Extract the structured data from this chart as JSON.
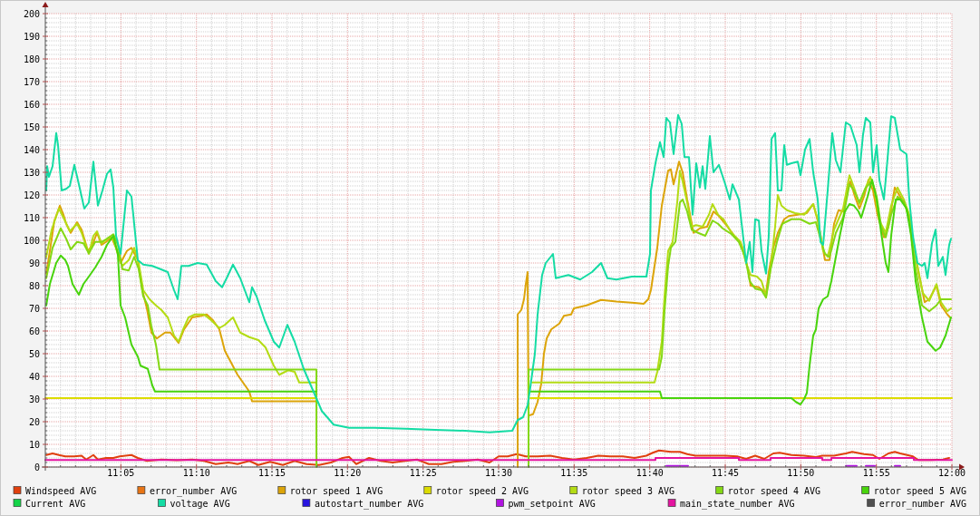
{
  "chart_data": {
    "type": "line",
    "xlim": [
      11,
      12
    ],
    "ylim": [
      0,
      200
    ],
    "grid": true,
    "legend": "bottom",
    "xticks": [
      {
        "value": 11.0167,
        "label": null
      },
      {
        "value": 11.0333,
        "label": null
      },
      {
        "value": 11.05,
        "label": null
      },
      {
        "value": 11.0667,
        "label": null
      },
      {
        "value": 11.0833,
        "label": "11:05"
      },
      {
        "value": 11.1,
        "label": null
      },
      {
        "value": 11.1167,
        "label": null
      },
      {
        "value": 11.1333,
        "label": null
      },
      {
        "value": 11.15,
        "label": null
      },
      {
        "value": 11.1667,
        "label": "11:10"
      },
      {
        "value": 11.1833,
        "label": null
      },
      {
        "value": 11.2,
        "label": null
      },
      {
        "value": 11.2167,
        "label": null
      },
      {
        "value": 11.2333,
        "label": null
      },
      {
        "value": 11.25,
        "label": "11:15"
      },
      {
        "value": 11.2667,
        "label": null
      },
      {
        "value": 11.2833,
        "label": null
      },
      {
        "value": 11.3,
        "label": null
      },
      {
        "value": 11.3167,
        "label": null
      },
      {
        "value": 11.3333,
        "label": "11:20"
      },
      {
        "value": 11.35,
        "label": null
      },
      {
        "value": 11.3667,
        "label": null
      },
      {
        "value": 11.3833,
        "label": null
      },
      {
        "value": 11.4,
        "label": null
      },
      {
        "value": 11.4167,
        "label": "11:25"
      },
      {
        "value": 11.4333,
        "label": null
      },
      {
        "value": 11.45,
        "label": null
      },
      {
        "value": 11.4667,
        "label": null
      },
      {
        "value": 11.4833,
        "label": null
      },
      {
        "value": 11.5,
        "label": "11:30"
      },
      {
        "value": 11.5167,
        "label": null
      },
      {
        "value": 11.5333,
        "label": null
      },
      {
        "value": 11.55,
        "label": null
      },
      {
        "value": 11.5667,
        "label": null
      },
      {
        "value": 11.5833,
        "label": "11:35"
      },
      {
        "value": 11.6,
        "label": null
      },
      {
        "value": 11.6167,
        "label": null
      },
      {
        "value": 11.6333,
        "label": null
      },
      {
        "value": 11.65,
        "label": null
      },
      {
        "value": 11.6667,
        "label": "11:40"
      },
      {
        "value": 11.6833,
        "label": null
      },
      {
        "value": 11.7,
        "label": null
      },
      {
        "value": 11.7167,
        "label": null
      },
      {
        "value": 11.7333,
        "label": null
      },
      {
        "value": 11.75,
        "label": "11:45"
      },
      {
        "value": 11.7667,
        "label": null
      },
      {
        "value": 11.7833,
        "label": null
      },
      {
        "value": 11.8,
        "label": null
      },
      {
        "value": 11.8167,
        "label": null
      },
      {
        "value": 11.8333,
        "label": "11:50"
      },
      {
        "value": 11.85,
        "label": null
      },
      {
        "value": 11.8667,
        "label": null
      },
      {
        "value": 11.8833,
        "label": null
      },
      {
        "value": 11.9,
        "label": null
      },
      {
        "value": 11.9167,
        "label": "11:55"
      },
      {
        "value": 11.9333,
        "label": null
      },
      {
        "value": 11.95,
        "label": null
      },
      {
        "value": 11.9667,
        "label": null
      },
      {
        "value": 11.9833,
        "label": null
      },
      {
        "value": 12,
        "label": "12:00"
      }
    ],
    "yticks": [
      0,
      {
        "value": 2,
        "label": null
      },
      {
        "value": 4,
        "label": null
      },
      {
        "value": 6,
        "label": null
      },
      {
        "value": 8,
        "label": null
      },
      10,
      {
        "value": 12,
        "label": null
      },
      {
        "value": 14,
        "label": null
      },
      {
        "value": 16,
        "label": null
      },
      {
        "value": 18,
        "label": null
      },
      20,
      {
        "value": 22,
        "label": null
      },
      {
        "value": 24,
        "label": null
      },
      {
        "value": 26,
        "label": null
      },
      {
        "value": 28,
        "label": null
      },
      30,
      {
        "value": 32,
        "label": null
      },
      {
        "value": 34,
        "label": null
      },
      {
        "value": 36,
        "label": null
      },
      {
        "value": 38,
        "label": null
      },
      40,
      {
        "value": 42,
        "label": null
      },
      {
        "value": 44,
        "label": null
      },
      {
        "value": 46,
        "label": null
      },
      {
        "value": 48,
        "label": null
      },
      50,
      {
        "value": 52,
        "label": null
      },
      {
        "value": 54,
        "label": null
      },
      {
        "value": 56,
        "label": null
      },
      {
        "value": 58,
        "label": null
      },
      60,
      {
        "value": 62,
        "label": null
      },
      {
        "value": 64,
        "label": null
      },
      {
        "value": 66,
        "label": null
      },
      {
        "value": 68,
        "label": null
      },
      70,
      {
        "value": 72,
        "label": null
      },
      {
        "value": 74,
        "label": null
      },
      {
        "value": 76,
        "label": null
      },
      {
        "value": 78,
        "label": null
      },
      80,
      {
        "value": 82,
        "label": null
      },
      {
        "value": 84,
        "label": null
      },
      {
        "value": 86,
        "label": null
      },
      {
        "value": 88,
        "label": null
      },
      90,
      {
        "value": 92,
        "label": null
      },
      {
        "value": 94,
        "label": null
      },
      {
        "value": 96,
        "label": null
      },
      {
        "value": 98,
        "label": null
      },
      100,
      {
        "value": 102,
        "label": null
      },
      {
        "value": 104,
        "label": null
      },
      {
        "value": 106,
        "label": null
      },
      {
        "value": 108,
        "label": null
      },
      110,
      {
        "value": 112,
        "label": null
      },
      {
        "value": 114,
        "label": null
      },
      {
        "value": 116,
        "label": null
      },
      {
        "value": 118,
        "label": null
      },
      120,
      {
        "value": 122,
        "label": null
      },
      {
        "value": 124,
        "label": null
      },
      {
        "value": 126,
        "label": null
      },
      {
        "value": 128,
        "label": null
      },
      130,
      {
        "value": 132,
        "label": null
      },
      {
        "value": 134,
        "label": null
      },
      {
        "value": 136,
        "label": null
      },
      {
        "value": 138,
        "label": null
      },
      140,
      {
        "value": 142,
        "label": null
      },
      {
        "value": 144,
        "label": null
      },
      {
        "value": 146,
        "label": null
      },
      {
        "value": 148,
        "label": null
      },
      150,
      {
        "value": 152,
        "label": null
      },
      {
        "value": 154,
        "label": null
      },
      {
        "value": 156,
        "label": null
      },
      {
        "value": 158,
        "label": null
      },
      160,
      {
        "value": 162,
        "label": null
      },
      {
        "value": 164,
        "label": null
      },
      {
        "value": 166,
        "label": null
      },
      {
        "value": 168,
        "label": null
      },
      170,
      {
        "value": 172,
        "label": null
      },
      {
        "value": 174,
        "label": null
      },
      {
        "value": 176,
        "label": null
      },
      {
        "value": 178,
        "label": null
      },
      180,
      {
        "value": 182,
        "label": null
      },
      {
        "value": 184,
        "label": null
      },
      {
        "value": 186,
        "label": null
      },
      {
        "value": 188,
        "label": null
      },
      190,
      {
        "value": 192,
        "label": null
      },
      {
        "value": 194,
        "label": null
      },
      {
        "value": 196,
        "label": null
      },
      {
        "value": 198,
        "label": null
      },
      200
    ],
    "series": [
      {
        "name": "Windspeed AVG",
        "color": "#e0400e",
        "x": [
          11.001,
          11.008,
          11.015,
          11.022,
          11.032,
          11.04,
          11.045,
          11.053,
          11.058,
          11.067,
          11.075,
          11.082,
          11.095,
          11.102,
          11.112,
          11.128,
          11.145,
          11.162,
          11.175,
          11.188,
          11.202,
          11.212,
          11.225,
          11.235,
          11.248,
          11.262,
          11.275,
          11.288,
          11.302,
          11.315,
          11.328,
          11.335,
          11.343,
          11.357,
          11.37,
          11.383,
          11.397,
          11.41,
          11.423,
          11.437,
          11.45,
          11.463,
          11.477,
          11.49,
          11.5,
          11.51,
          11.52,
          11.53,
          11.543,
          11.557,
          11.57,
          11.583,
          11.597,
          11.61,
          11.623,
          11.637,
          11.65,
          11.663,
          11.67,
          11.677,
          11.69,
          11.7,
          11.708,
          11.717,
          11.727,
          11.737,
          11.75,
          11.763,
          11.773,
          11.783,
          11.793,
          11.803,
          11.81,
          11.823,
          11.837,
          11.85,
          11.857,
          11.87,
          11.883,
          11.89,
          11.903,
          11.913,
          11.92,
          11.93,
          11.937,
          11.943,
          11.957,
          11.963,
          11.977,
          11.99,
          11.997
        ],
        "values": [
          5.3,
          6,
          5.3,
          4.7,
          4.7,
          5,
          3.3,
          5.3,
          3.3,
          4,
          4,
          4.7,
          5.3,
          4,
          2.7,
          3.3,
          3,
          3.3,
          2.7,
          1.3,
          2,
          1.3,
          2.7,
          0.9,
          2.3,
          0.9,
          2.7,
          1.3,
          0.9,
          2,
          4,
          4.5,
          1.3,
          4,
          2.7,
          2,
          2.7,
          3.3,
          1.3,
          1.3,
          2.3,
          2.7,
          3.3,
          2,
          4.7,
          4.7,
          5.7,
          4.7,
          4.7,
          5,
          4,
          3.3,
          4,
          5,
          4.7,
          4.7,
          4,
          5,
          6.3,
          7.3,
          6.7,
          6.7,
          5.7,
          5,
          5,
          5,
          5,
          4.7,
          3.6,
          5,
          3.6,
          6,
          6.3,
          5.3,
          5,
          4.4,
          5,
          5,
          6,
          6.7,
          5.7,
          5.3,
          3.6,
          6,
          6.7,
          6,
          4.7,
          3.1,
          3.1,
          3.3,
          4
        ]
      },
      {
        "name": "error_number AVG",
        "color": "#e87414"
      },
      {
        "name": "rotor speed 1 AVG",
        "color": "#dca408",
        "x": [
          11.001,
          11.005,
          11.01,
          11.016,
          11.02,
          11.023,
          11.028,
          11.035,
          11.04,
          11.047,
          11.052,
          11.057,
          11.062,
          11.067,
          11.073,
          11.078,
          11.083,
          11.09,
          11.095,
          11.102,
          11.107,
          11.112,
          11.117,
          11.123,
          11.132,
          11.138,
          11.147,
          11.153,
          11.162,
          11.172,
          11.178,
          11.185,
          11.192,
          11.198,
          11.205,
          11.212,
          11.218,
          11.225,
          11.228,
          11.299,
          11.3,
          11.521,
          11.521,
          11.525,
          11.528,
          11.53,
          11.532,
          11.533,
          11.538,
          11.543,
          11.547,
          11.55,
          11.553,
          11.558,
          11.567,
          11.572,
          11.58,
          11.583,
          11.597,
          11.613,
          11.63,
          11.65,
          11.66,
          11.665,
          11.668,
          11.675,
          11.68,
          11.687,
          11.69,
          11.693,
          11.699,
          11.703,
          11.708,
          11.715,
          11.722,
          11.73,
          11.737,
          11.743,
          11.75,
          11.76,
          11.768,
          11.775,
          11.778,
          11.787,
          11.795,
          11.798,
          11.803,
          11.808,
          11.815,
          11.82,
          11.83,
          11.84,
          11.847,
          11.852,
          11.857,
          11.86,
          11.865,
          11.87,
          11.875,
          11.88,
          11.885,
          11.888,
          11.893,
          11.898,
          11.903,
          11.908,
          11.913,
          11.918,
          11.925,
          11.93,
          11.937,
          11.943,
          11.95,
          11.957,
          11.963,
          11.97,
          11.975,
          11.983,
          11.988,
          11.995,
          11.998
        ],
        "values": [
          85.3,
          95.3,
          108.7,
          115.3,
          111.3,
          107.3,
          103.3,
          108,
          104.7,
          95.3,
          98,
          103.3,
          98,
          99.3,
          101.3,
          96.7,
          90,
          95.3,
          96.7,
          91.3,
          78,
          70,
          59.3,
          56.7,
          59.3,
          59.3,
          54.7,
          60.7,
          66,
          66.7,
          67.3,
          64.7,
          60.7,
          51.3,
          46,
          40.7,
          37.3,
          33.3,
          29,
          29,
          null,
          0,
          67.3,
          69.3,
          74,
          80.7,
          86,
          22.7,
          23.3,
          28.7,
          36.7,
          50,
          56.7,
          60.7,
          63.3,
          66.7,
          67.3,
          70,
          71.3,
          73.7,
          73,
          72.4,
          72,
          74,
          78,
          96.7,
          115.3,
          130.7,
          131.3,
          124.7,
          134.7,
          130,
          118,
          103.3,
          105.3,
          106,
          112.7,
          110.7,
          107.3,
          102,
          98,
          87.3,
          80,
          79.3,
          76.7,
          86,
          96.7,
          103.3,
          109.3,
          110.7,
          111.3,
          112,
          116,
          108.7,
          98,
          91.3,
          91.3,
          107.3,
          113.3,
          112.7,
          123.3,
          126,
          119.3,
          114,
          119.3,
          126.7,
          122,
          111.3,
          101.3,
          106,
          123.3,
          119.3,
          114,
          100.7,
          86,
          72.7,
          74,
          80,
          71.3,
          67.3,
          66
        ]
      },
      {
        "name": "rotor speed 2 AVG",
        "color": "#dcdc00",
        "x": [
          11,
          11.299,
          11.3,
          11.535,
          11.679,
          11.68,
          11.823,
          12
        ],
        "values": [
          30.4,
          30.4,
          null,
          30.4,
          30.4,
          null,
          30.4,
          30.4
        ]
      },
      {
        "name": "rotor speed 3 AVG",
        "color": "#b4dc14",
        "x": [
          11.001,
          11.007,
          11.015,
          11.02,
          11.027,
          11.035,
          11.04,
          11.048,
          11.053,
          11.057,
          11.062,
          11.07,
          11.075,
          11.08,
          11.085,
          11.092,
          11.098,
          11.103,
          11.108,
          11.115,
          11.122,
          11.128,
          11.135,
          11.142,
          11.147,
          11.152,
          11.158,
          11.165,
          11.175,
          11.183,
          11.192,
          11.198,
          11.207,
          11.215,
          11.225,
          11.235,
          11.243,
          11.252,
          11.258,
          11.268,
          11.275,
          11.28,
          11.299,
          11.3,
          11.537,
          11.672,
          11.675,
          11.68,
          11.683,
          11.687,
          11.692,
          11.697,
          11.7,
          11.703,
          11.708,
          11.713,
          11.718,
          11.725,
          11.732,
          11.736,
          11.742,
          11.748,
          11.757,
          11.767,
          11.773,
          11.778,
          11.785,
          11.79,
          11.795,
          11.8,
          11.805,
          11.808,
          11.812,
          11.818,
          11.827,
          11.837,
          11.847,
          11.852,
          11.858,
          11.863,
          11.87,
          11.88,
          11.887,
          11.892,
          11.898,
          11.905,
          11.91,
          11.915,
          11.92,
          11.927,
          11.933,
          11.94,
          11.947,
          11.953,
          11.96,
          11.968,
          11.975,
          11.983,
          11.988,
          11.995,
          11.999
        ],
        "values": [
          92.7,
          104.7,
          114,
          110,
          104,
          107.3,
          103.3,
          94,
          102,
          104,
          98.7,
          101.3,
          100.7,
          94,
          88.7,
          91.3,
          96.7,
          90,
          78,
          74,
          71.3,
          69.3,
          66,
          58,
          55.3,
          60.7,
          66,
          67.3,
          67.3,
          64.7,
          61.3,
          62.7,
          66,
          59.3,
          57.3,
          56,
          52.7,
          44.7,
          40.7,
          42.7,
          42,
          37.3,
          37.3,
          null,
          37.3,
          37.3,
          42,
          55.3,
          75.3,
          95.3,
          99.3,
          116.7,
          130.7,
          126,
          116.7,
          106,
          106.7,
          106,
          111.3,
          116,
          111.3,
          109.3,
          103.3,
          99.3,
          90,
          84.7,
          84,
          82,
          75.3,
          87.3,
          106,
          120,
          115.3,
          113.3,
          112,
          111.3,
          116,
          109.3,
          95.3,
          92.7,
          104.7,
          114,
          128.7,
          123.3,
          116,
          123.3,
          128,
          122,
          108.7,
          103.3,
          115.3,
          123.3,
          118,
          111.3,
          92.7,
          76.7,
          73.3,
          80.7,
          72.7,
          68.7,
          70
        ]
      },
      {
        "name": "rotor speed 4 AVG",
        "color": "#84d814",
        "x": [
          11.001,
          11.008,
          11.017,
          11.023,
          11.028,
          11.035,
          11.042,
          11.048,
          11.055,
          11.062,
          11.068,
          11.075,
          11.08,
          11.085,
          11.092,
          11.098,
          11.103,
          11.108,
          11.113,
          11.117,
          11.122,
          11.126,
          11.299,
          11.299,
          11.3,
          11.533,
          11.533,
          11.677,
          11.68,
          11.683,
          11.687,
          11.69,
          11.695,
          11.7,
          11.703,
          11.708,
          11.713,
          11.72,
          11.728,
          11.736,
          11.742,
          11.747,
          11.757,
          11.765,
          11.772,
          11.777,
          11.783,
          11.79,
          11.795,
          11.8,
          11.807,
          11.813,
          11.823,
          11.833,
          11.843,
          11.85,
          11.855,
          11.86,
          11.865,
          11.872,
          11.88,
          11.887,
          11.892,
          11.898,
          11.905,
          11.912,
          11.917,
          11.922,
          11.927,
          11.933,
          11.94,
          11.947,
          11.953,
          11.96,
          11.967,
          11.975,
          11.983,
          11.988,
          11.999
        ],
        "values": [
          83.3,
          96.7,
          105.3,
          100.7,
          96,
          99.3,
          98.7,
          94.3,
          99.3,
          99.3,
          100.7,
          102.7,
          98,
          87.3,
          86.7,
          92.7,
          87.3,
          75.3,
          71.3,
          62,
          54,
          43,
          43,
          0,
          null,
          0,
          43,
          43,
          48.7,
          68.7,
          88.7,
          96.7,
          99.3,
          116.7,
          118,
          112.7,
          104.7,
          103.3,
          102,
          108.7,
          107.3,
          105.3,
          102.7,
          99.3,
          92.7,
          82,
          78.7,
          78,
          74.7,
          87.3,
          99.3,
          107.3,
          109.3,
          109.3,
          107.3,
          108,
          100.7,
          94,
          92.7,
          103.3,
          110,
          124.7,
          122,
          116.7,
          123.3,
          126,
          119.3,
          106,
          101.3,
          111.3,
          119.3,
          117.3,
          109.3,
          87.3,
          71.3,
          68.7,
          71.3,
          74,
          74
        ]
      },
      {
        "name": "rotor speed 5 AVG",
        "color": "#48d40c",
        "x": [
          11.001,
          11.005,
          11.012,
          11.017,
          11.022,
          11.025,
          11.03,
          11.037,
          11.042,
          11.048,
          11.055,
          11.062,
          11.068,
          11.075,
          11.08,
          11.083,
          11.088,
          11.095,
          11.102,
          11.105,
          11.113,
          11.118,
          11.121,
          11.299,
          11.3,
          11.535,
          11.678,
          11.68,
          11.823,
          11.828,
          11.833,
          11.837,
          11.84,
          11.843,
          11.847,
          11.85,
          11.853,
          11.858,
          11.863,
          11.867,
          11.872,
          11.877,
          11.882,
          11.887,
          11.892,
          11.897,
          11.9,
          11.907,
          11.912,
          11.917,
          11.922,
          11.927,
          11.93,
          11.933,
          11.938,
          11.943,
          11.95,
          11.955,
          11.96,
          11.967,
          11.973,
          11.982,
          11.987,
          11.993,
          11.999
        ],
        "values": [
          71.3,
          80.7,
          90,
          93.3,
          91.3,
          88.7,
          80.7,
          76,
          80.7,
          84,
          88,
          92.7,
          98,
          102,
          94,
          71.3,
          66,
          54,
          48.7,
          44.7,
          43.3,
          36,
          33.3,
          33.3,
          null,
          33.3,
          33.3,
          30.4,
          30.4,
          28.7,
          27.6,
          30,
          32.7,
          44.7,
          58,
          60.7,
          70,
          74,
          75.3,
          82,
          92.7,
          103.3,
          112.7,
          116,
          115.3,
          112.7,
          110,
          119.3,
          126.7,
          118,
          103.3,
          90,
          86,
          102,
          118,
          118,
          114,
          102,
          82,
          66,
          55.3,
          51.3,
          52.7,
          58,
          66
        ]
      },
      {
        "name": "Current AVG",
        "color": "#14d448"
      },
      {
        "name": "voltage AVG",
        "color": "#14dca4",
        "x": [
          11.001,
          11.002,
          11.004,
          11.008,
          11.012,
          11.014,
          11.018,
          11.023,
          11.027,
          11.032,
          11.037,
          11.043,
          11.048,
          11.053,
          11.058,
          11.063,
          11.068,
          11.072,
          11.075,
          11.078,
          11.083,
          11.09,
          11.095,
          11.098,
          11.102,
          11.108,
          11.118,
          11.127,
          11.135,
          11.142,
          11.146,
          11.15,
          11.158,
          11.168,
          11.178,
          11.188,
          11.195,
          11.2,
          11.207,
          11.215,
          11.225,
          11.228,
          11.233,
          11.242,
          11.252,
          11.258,
          11.267,
          11.275,
          11.285,
          11.295,
          11.305,
          11.318,
          11.335,
          11.363,
          11.397,
          11.43,
          11.463,
          11.49,
          11.515,
          11.521,
          11.527,
          11.532,
          11.535,
          11.54,
          11.543,
          11.548,
          11.552,
          11.56,
          11.563,
          11.577,
          11.59,
          11.603,
          11.613,
          11.62,
          11.63,
          11.647,
          11.663,
          11.667,
          11.668,
          11.673,
          11.678,
          11.682,
          11.685,
          11.689,
          11.693,
          11.698,
          11.702,
          11.705,
          11.71,
          11.714,
          11.718,
          11.722,
          11.725,
          11.728,
          11.733,
          11.737,
          11.743,
          11.75,
          11.755,
          11.758,
          11.765,
          11.77,
          11.773,
          11.777,
          11.78,
          11.783,
          11.787,
          11.79,
          11.795,
          11.798,
          11.801,
          11.805,
          11.808,
          11.812,
          11.815,
          11.818,
          11.823,
          11.83,
          11.833,
          11.838,
          11.843,
          11.847,
          11.852,
          11.855,
          11.858,
          11.863,
          11.868,
          11.872,
          11.877,
          11.883,
          11.888,
          11.895,
          11.898,
          11.902,
          11.905,
          11.91,
          11.913,
          11.917,
          11.92,
          11.925,
          11.928,
          11.933,
          11.937,
          11.943,
          11.95,
          11.953,
          11.957,
          11.962,
          11.967,
          11.97,
          11.973,
          11.978,
          11.982,
          11.985,
          11.99,
          11.993,
          11.997,
          11.999
        ],
        "values": [
          122,
          132.7,
          128,
          132.7,
          147.3,
          142,
          122,
          122.7,
          124,
          133.3,
          124.7,
          114,
          116.7,
          134.7,
          115.3,
          122,
          129.3,
          131.3,
          123.3,
          102,
          94,
          122,
          119.3,
          107.3,
          91.3,
          89.3,
          88.7,
          87.3,
          86,
          78,
          74,
          88.7,
          88.7,
          90,
          89.3,
          82,
          79.3,
          83.3,
          89.3,
          83.3,
          72.7,
          79.3,
          75.3,
          64.7,
          55.3,
          52.7,
          62.7,
          55.3,
          43.3,
          34,
          24.7,
          18.7,
          17.3,
          17.3,
          16.9,
          16.4,
          16,
          15.3,
          16,
          20.7,
          22,
          27.3,
          35.3,
          50,
          67.3,
          84.7,
          90,
          94,
          83.3,
          84.7,
          82.7,
          86,
          90,
          83.3,
          82.7,
          84,
          84,
          94,
          122,
          134,
          143.3,
          136.7,
          154,
          152,
          138,
          155.3,
          151.3,
          136.7,
          136.7,
          111.3,
          134,
          123.3,
          132.7,
          122.7,
          146,
          130,
          133.3,
          124.7,
          118,
          124.7,
          118,
          100.7,
          90,
          99.3,
          86,
          109.3,
          108.7,
          95.3,
          85.3,
          102,
          144.7,
          147.3,
          122,
          122,
          142,
          133.3,
          134,
          134.7,
          128.7,
          140,
          144.7,
          130,
          118,
          99.3,
          98,
          122,
          147.3,
          135.3,
          130,
          152,
          150.7,
          142,
          130,
          146.7,
          154,
          152,
          130,
          142,
          126.7,
          118,
          131.3,
          154.7,
          154,
          140,
          138,
          118,
          102,
          90,
          88.7,
          90,
          83.3,
          98.7,
          104.7,
          88.7,
          92.7,
          84.7,
          98,
          100.7
        ]
      },
      {
        "name": "autostart_number AVG",
        "color": "#2814e0"
      },
      {
        "name": "pwm_setpoint AVG",
        "color": "#b014e0",
        "x": [
          11.685,
          11.709,
          11.71,
          11.883,
          11.895,
          11.896,
          11.905,
          11.915,
          11.916,
          11.937,
          11.943
        ],
        "values": [
          0.5,
          0.5,
          null,
          0.5,
          0.5,
          null,
          0.5,
          0.5,
          null,
          0.5,
          0.5
        ]
      },
      {
        "name": "main_state_number AVG",
        "color": "#e414a0",
        "x": [
          11,
          11.673,
          11.673,
          11.765,
          11.765,
          11.8,
          11.8,
          11.857,
          11.857,
          11.867,
          11.867,
          11.958,
          11.958,
          12
        ],
        "values": [
          3.1,
          3.1,
          4,
          4,
          3.1,
          3.1,
          4,
          4,
          3.1,
          3.1,
          4,
          4,
          3.1,
          3.1
        ]
      },
      {
        "name": "error_number AVG",
        "color": "#505050"
      }
    ]
  }
}
